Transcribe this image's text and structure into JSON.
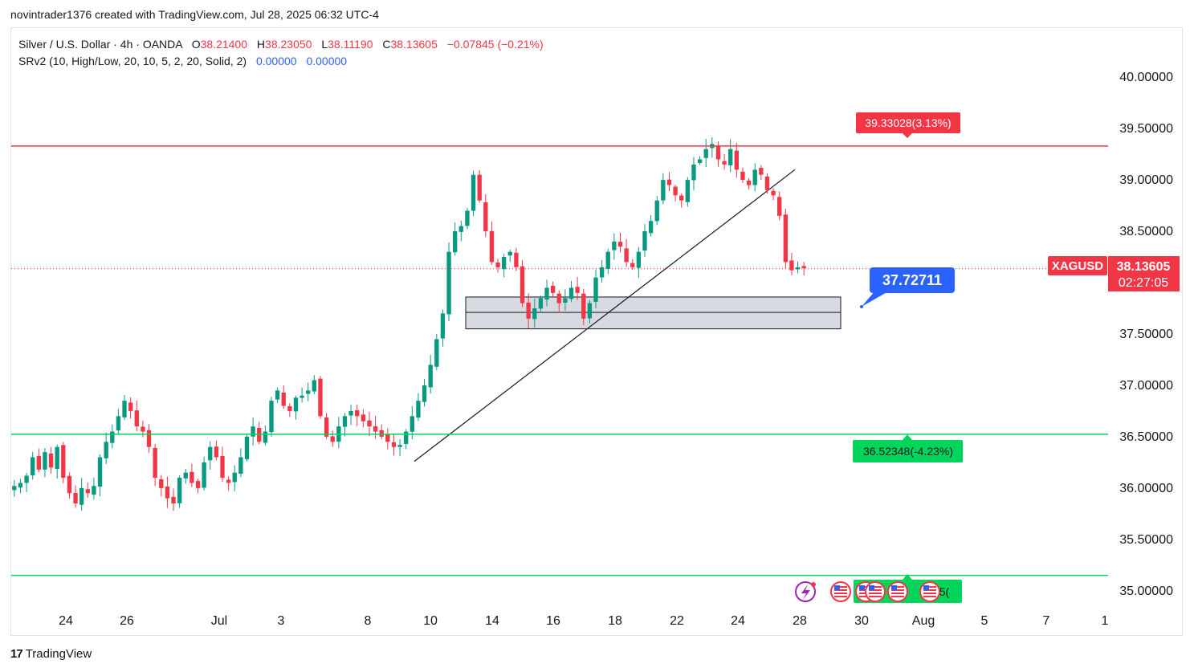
{
  "attribution": "novintrader1376 created with TradingView.com, Jul 28, 2025 06:32 UTC-4",
  "legend": {
    "symbol": "Silver / U.S. Dollar · 4h · OANDA",
    "o_label": "O",
    "o_value": "38.21400",
    "h_label": "H",
    "h_value": "38.23050",
    "l_label": "L",
    "l_value": "38.11190",
    "c_label": "C",
    "c_value": "38.13605",
    "change": "−0.07845 (−0.21%)",
    "indicator": "SRv2 (10, High/Low, 20, 10, 5, 2, 20, Solid, 2)",
    "ind_v1": "0.00000",
    "ind_v2": "0.00000"
  },
  "footer": {
    "logo": "17",
    "brand": "TradingView"
  },
  "colors": {
    "up": "#089981",
    "up_fill": "#22ab94",
    "down": "#f23645",
    "resistance": "#f23645",
    "support": "#00d45a",
    "price_label": "#f23645",
    "callout": "#2962ff",
    "zone_fill": "#d1d4dc"
  },
  "chart_data": {
    "type": "candlestick",
    "symbol_label": "XAGUSD",
    "last_price": "38.13605",
    "countdown": "02:27:05",
    "callout_value": "37.72711",
    "ylim": [
      34.85,
      40.4
    ],
    "y_ticks": [
      "40.00000",
      "39.50000",
      "39.00000",
      "38.50000",
      "38.00000",
      "37.50000",
      "37.00000",
      "36.50000",
      "36.00000",
      "35.50000",
      "35.00000"
    ],
    "x_ticks": [
      "24",
      "26",
      "Jul",
      "3",
      "8",
      "10",
      "14",
      "16",
      "18",
      "22",
      "24",
      "28",
      "30",
      "Aug",
      "5",
      "7",
      "1"
    ],
    "resistance": {
      "price": 39.33028,
      "label": "39.33028(3.13%)"
    },
    "support": {
      "price": 36.52348,
      "label": "36.52348(-4.23%)"
    },
    "support2": {
      "price": 35.15,
      "label": "5("
    },
    "zone": {
      "top": 37.86,
      "bottom": 37.55,
      "mid": 37.71
    },
    "trendline": {
      "from": 36.26,
      "to": 39.1
    },
    "price_path": [
      36.02,
      36.05,
      36.12,
      36.3,
      36.18,
      36.35,
      36.2,
      36.4,
      36.1,
      35.95,
      35.85,
      36.0,
      35.95,
      36.02,
      36.3,
      36.45,
      36.55,
      36.7,
      36.85,
      36.75,
      36.6,
      36.55,
      36.4,
      36.1,
      36.0,
      35.9,
      35.85,
      36.1,
      36.15,
      36.05,
      36.0,
      36.25,
      36.4,
      36.3,
      36.1,
      36.05,
      36.15,
      36.3,
      36.5,
      36.6,
      36.45,
      36.55,
      36.85,
      36.95,
      36.8,
      36.75,
      36.88,
      36.9,
      36.95,
      37.05,
      36.7,
      36.5,
      36.45,
      36.6,
      36.7,
      36.75,
      36.7,
      36.65,
      36.6,
      36.55,
      36.5,
      36.45,
      36.4,
      36.42,
      36.55,
      36.7,
      36.85,
      37.0,
      37.2,
      37.45,
      37.7,
      38.3,
      38.5,
      38.55,
      38.7,
      39.05,
      38.8,
      38.5,
      38.2,
      38.15,
      38.25,
      38.3,
      38.15,
      37.8,
      37.65,
      37.75,
      37.85,
      37.95,
      37.9,
      37.8,
      37.85,
      37.95,
      37.9,
      37.65,
      37.8,
      38.05,
      38.15,
      38.3,
      38.4,
      38.35,
      38.2,
      38.15,
      38.3,
      38.5,
      38.6,
      38.8,
      39.0,
      38.95,
      38.85,
      38.8,
      39.0,
      39.15,
      39.2,
      39.3,
      39.35,
      39.2,
      39.15,
      39.3,
      39.1,
      39.0,
      38.95,
      39.1,
      39.05,
      38.9,
      38.85,
      38.65,
      38.2,
      38.12,
      38.15,
      38.14
    ]
  }
}
